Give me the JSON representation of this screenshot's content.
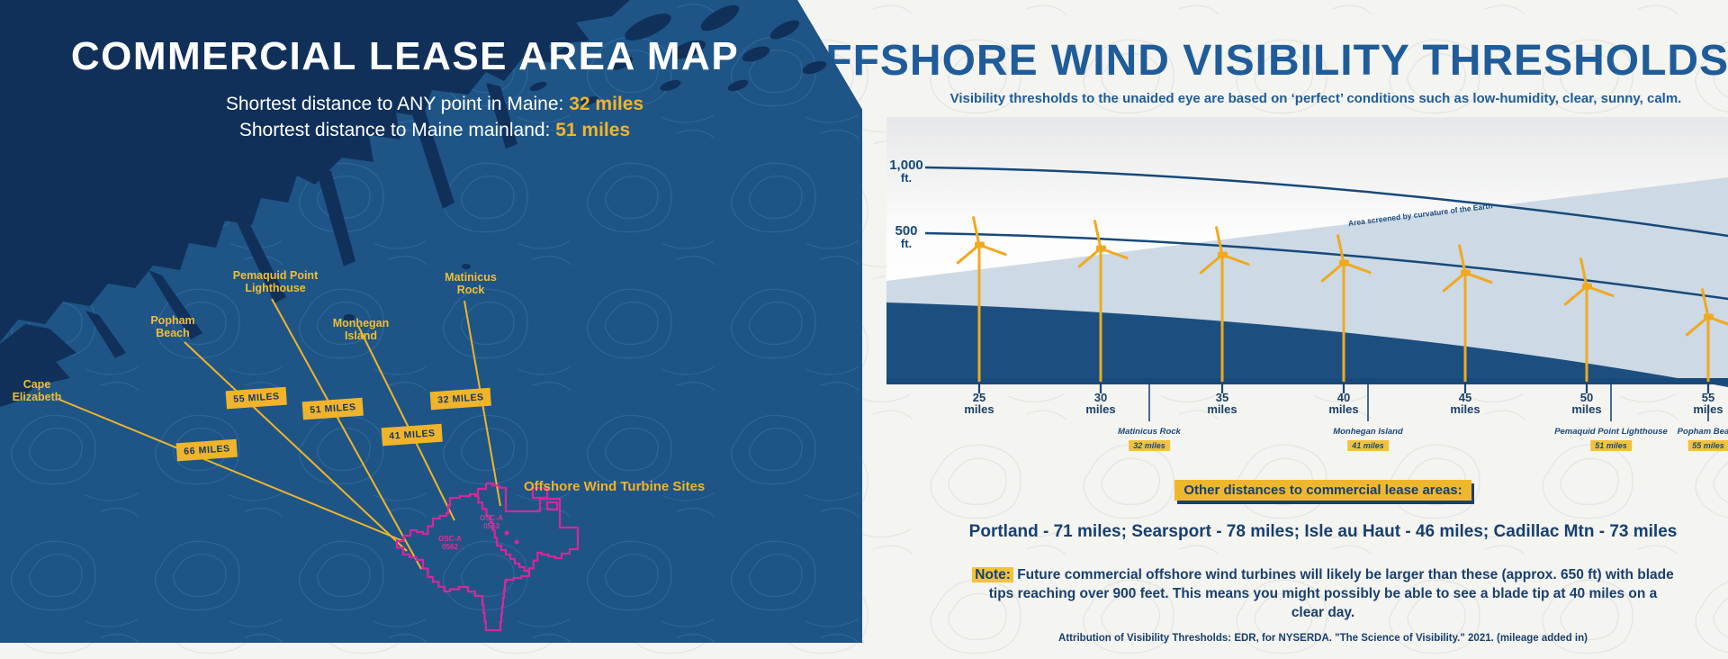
{
  "map_panel": {
    "title": "COMMERCIAL LEASE AREA MAP",
    "stats": [
      {
        "label": "Shortest distance to ANY point in Maine: ",
        "value": "32 miles"
      },
      {
        "label": "Shortest distance to Maine mainland: ",
        "value": "51 miles"
      }
    ],
    "locations": [
      {
        "name": "Cape\nElizabeth"
      },
      {
        "name": "Popham\nBeach"
      },
      {
        "name": "Pemaquid Point\nLighthouse"
      },
      {
        "name": "Monhegan\nIsland"
      },
      {
        "name": "Matinicus\nRock"
      }
    ],
    "badges": [
      "66 MILES",
      "55 MILES",
      "51 MILES",
      "41 MILES",
      "32 MILES"
    ],
    "sites_label": "Offshore Wind Turbine Sites",
    "lease_labels": [
      "OSC-A\n0563",
      "OSC-A\n0562"
    ]
  },
  "viz_panel": {
    "title": "OFFSHORE WIND VISIBILITY THRESHOLDS",
    "subtitle": "Visibility thresholds to the unaided eye are based on ‘perfect’ conditions such as low-humidity, clear, sunny, calm.",
    "y_axis": [
      {
        "value": "1,000",
        "unit": "ft."
      },
      {
        "value": "500",
        "unit": "ft."
      }
    ],
    "screened_label": "Area screened by curvature of the Earth",
    "x_ticks": [
      {
        "value": "25",
        "unit": "miles"
      },
      {
        "value": "30",
        "unit": "miles"
      },
      {
        "value": "35",
        "unit": "miles"
      },
      {
        "value": "40",
        "unit": "miles"
      },
      {
        "value": "45",
        "unit": "miles"
      },
      {
        "value": "50",
        "unit": "miles"
      },
      {
        "value": "55",
        "unit": "miles"
      }
    ],
    "landmarks": [
      {
        "name": "Matinicus Rock",
        "distance": "32 miles",
        "mile": 32
      },
      {
        "name": "Monhegan Island",
        "distance": "41 miles",
        "mile": 41
      },
      {
        "name": "Pemaquid Point Lighthouse",
        "distance": "51 miles",
        "mile": 51
      },
      {
        "name": "Popham Beach",
        "distance": "55 miles",
        "mile": 55
      }
    ],
    "other_heading": "Other distances to commercial lease areas:",
    "other_distances": "Portland - 71 miles; Searsport - 78 miles; Isle au Haut - 46 miles; Cadillac Mtn - 73 miles",
    "note_label": "Note:",
    "note_text": " Future commercial offshore wind turbines will likely be larger than these (approx. 650 ft) with blade tips reaching over 900 feet. This means you might possibly be able to see a blade tip at 40 miles on a clear day.",
    "attribution": "Attribution of Visibility Thresholds: EDR, for NYSERDA. \"The Science of Visibility.\" 2021. (mileage added in)"
  },
  "chart_data": {
    "type": "area",
    "title": "OFFSHORE WIND VISIBILITY THRESHOLDS",
    "x_units": "miles",
    "x_ticks": [
      25,
      30,
      35,
      40,
      45,
      50,
      55
    ],
    "y_axis_ft": [
      1000,
      500
    ],
    "turbines_at_miles": [
      25,
      30,
      35,
      40,
      45,
      50,
      55
    ],
    "screened_area_label": "Area screened by curvature of the Earth",
    "landmarks": [
      {
        "name": "Matinicus Rock",
        "miles": 32
      },
      {
        "name": "Monhegan Island",
        "miles": 41
      },
      {
        "name": "Pemaquid Point Lighthouse",
        "miles": 51
      },
      {
        "name": "Popham Beach",
        "miles": 55
      }
    ],
    "other_distances_miles": [
      {
        "name": "Portland",
        "miles": 71
      },
      {
        "name": "Searsport",
        "miles": 78
      },
      {
        "name": "Isle au Haut",
        "miles": 46
      },
      {
        "name": "Cadillac Mtn",
        "miles": 73
      }
    ],
    "map_shortest_distance_any_point_miles": 32,
    "map_shortest_distance_mainland_miles": 51,
    "map_landmark_distances_miles": [
      66,
      55,
      51,
      41,
      32
    ]
  }
}
